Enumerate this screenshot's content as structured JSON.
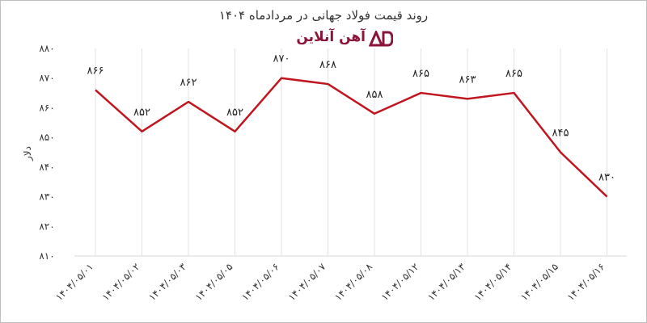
{
  "brand": {
    "name": "آهن آنلاین",
    "color": "#8b1538"
  },
  "chart_data": {
    "type": "line",
    "title": "روند قیمت فولاد جهانی در مردادماه ۱۴۰۴",
    "xlabel": "",
    "ylabel": "دلار",
    "categories": [
      "۱۴۰۴/۰۵/۰۱",
      "۱۴۰۴/۰۵/۰۲",
      "۱۴۰۴/۰۵/۰۳",
      "۱۴۰۴/۰۵/۰۵",
      "۱۴۰۴/۰۵/۰۶",
      "۱۴۰۴/۰۵/۰۷",
      "۱۴۰۴/۰۵/۰۸",
      "۱۴۰۴/۰۵/۱۲",
      "۱۴۰۴/۰۵/۱۳",
      "۱۴۰۴/۰۵/۱۴",
      "۱۴۰۴/۰۵/۱۵",
      "۱۴۰۴/۰۵/۱۶"
    ],
    "values": [
      866,
      852,
      862,
      852,
      870,
      868,
      858,
      865,
      863,
      865,
      845,
      830
    ],
    "value_labels": [
      "۸۶۶",
      "۸۵۲",
      "۸۶۲",
      "۸۵۲",
      "۸۷۰",
      "۸۶۸",
      "۸۵۸",
      "۸۶۵",
      "۸۶۳",
      "۸۶۵",
      "۸۴۵",
      "۸۳۰"
    ],
    "ylim": [
      810,
      880
    ],
    "yticks": [
      810,
      820,
      830,
      840,
      850,
      860,
      870,
      880
    ],
    "ytick_labels": [
      "۸۱۰",
      "۸۲۰",
      "۸۳۰",
      "۸۴۰",
      "۸۵۰",
      "۸۶۰",
      "۸۷۰",
      "۸۸۰"
    ],
    "line_color": "#c0161f",
    "grid": "vertical",
    "legend": "none"
  }
}
